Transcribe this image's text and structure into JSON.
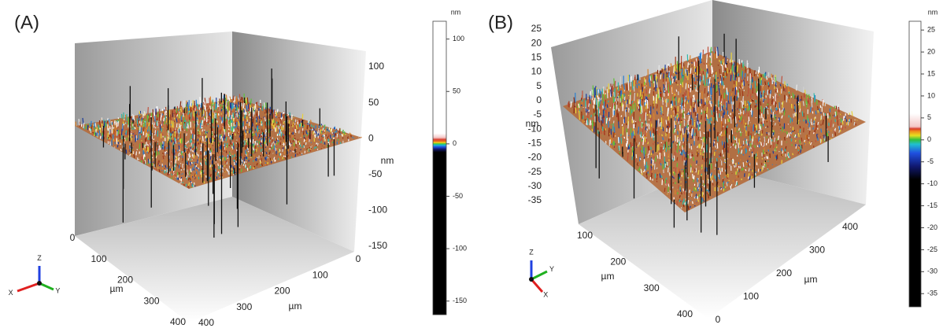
{
  "panels": [
    {
      "label": "(A)",
      "z_axis": {
        "title": "nm",
        "ticks": [
          100,
          50,
          0,
          -50,
          -100,
          -150
        ]
      },
      "x_axis": {
        "title": "µm",
        "ticks": [
          0,
          100,
          200,
          300,
          400
        ]
      },
      "y_axis": {
        "title": "µm",
        "ticks": [
          0,
          100,
          200,
          300,
          400
        ]
      },
      "colorbar": {
        "unit": "nm",
        "range": [
          -163,
          117
        ],
        "ticks": [
          100,
          50,
          0,
          -50,
          -100,
          -150
        ]
      },
      "triad": [
        "X",
        "Y",
        "Z"
      ]
    },
    {
      "label": "(B)",
      "z_axis": {
        "title": "nm",
        "ticks": [
          25,
          20,
          15,
          10,
          5,
          0,
          -5,
          -10,
          -15,
          -20,
          -25,
          -30,
          -35
        ]
      },
      "x_axis": {
        "title": "µm",
        "ticks": [
          100,
          200,
          300,
          400
        ]
      },
      "y_axis": {
        "title": "µm",
        "ticks": [
          0,
          100,
          200,
          300,
          400
        ]
      },
      "colorbar": {
        "unit": "nm",
        "range": [
          -38,
          27
        ],
        "ticks": [
          25,
          20,
          15,
          10,
          5,
          0,
          -5,
          -10,
          -15,
          -20,
          -25,
          -30,
          -35
        ]
      },
      "triad": [
        "X",
        "Y",
        "Z"
      ]
    }
  ]
}
